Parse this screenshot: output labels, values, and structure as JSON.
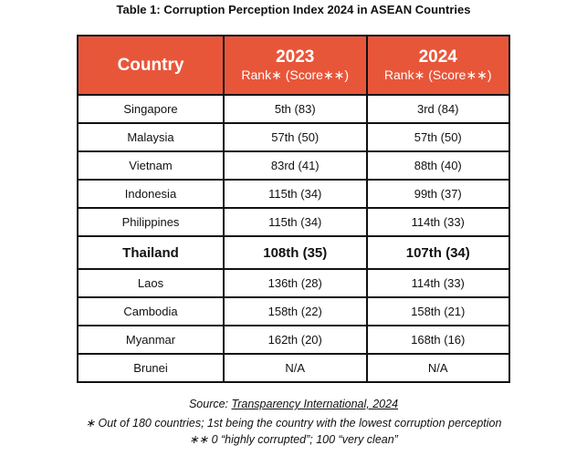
{
  "title": "Table 1: Corruption Perception Index 2024 in ASEAN Countries",
  "header": {
    "country": "Country",
    "y2023": "2023",
    "y2024": "2024",
    "sub": "Rank∗ (Score∗∗)"
  },
  "rows": [
    {
      "country": "Singapore",
      "r2023": "5th (83)",
      "r2024": "3rd (84)"
    },
    {
      "country": "Malaysia",
      "r2023": "57th (50)",
      "r2024": "57th (50)"
    },
    {
      "country": "Vietnam",
      "r2023": "83rd (41)",
      "r2024": "88th (40)"
    },
    {
      "country": "Indonesia",
      "r2023": "115th (34)",
      "r2024": "99th (37)"
    },
    {
      "country": "Philippines",
      "r2023": "115th (34)",
      "r2024": "114th (33)"
    },
    {
      "country": "Thailand",
      "r2023": "108th (35)",
      "r2024": "107th (34)"
    },
    {
      "country": "Laos",
      "r2023": "136th (28)",
      "r2024": "114th (33)"
    },
    {
      "country": "Cambodia",
      "r2023": "158th (22)",
      "r2024": "158th (21)"
    },
    {
      "country": "Myanmar",
      "r2023": "162th (20)",
      "r2024": "168th (16)"
    },
    {
      "country": "Brunei",
      "r2023": "N/A",
      "r2024": "N/A"
    }
  ],
  "footer": {
    "source_prefix": "Source: ",
    "source_link": "Transparency International, 2024",
    "note1": "∗ Out of 180 countries; 1st being the country with the lowest corruption perception",
    "note2": "∗∗ 0 “highly corrupted”; 100 “very clean”"
  },
  "colors": {
    "header_bg": "#e8563a"
  }
}
